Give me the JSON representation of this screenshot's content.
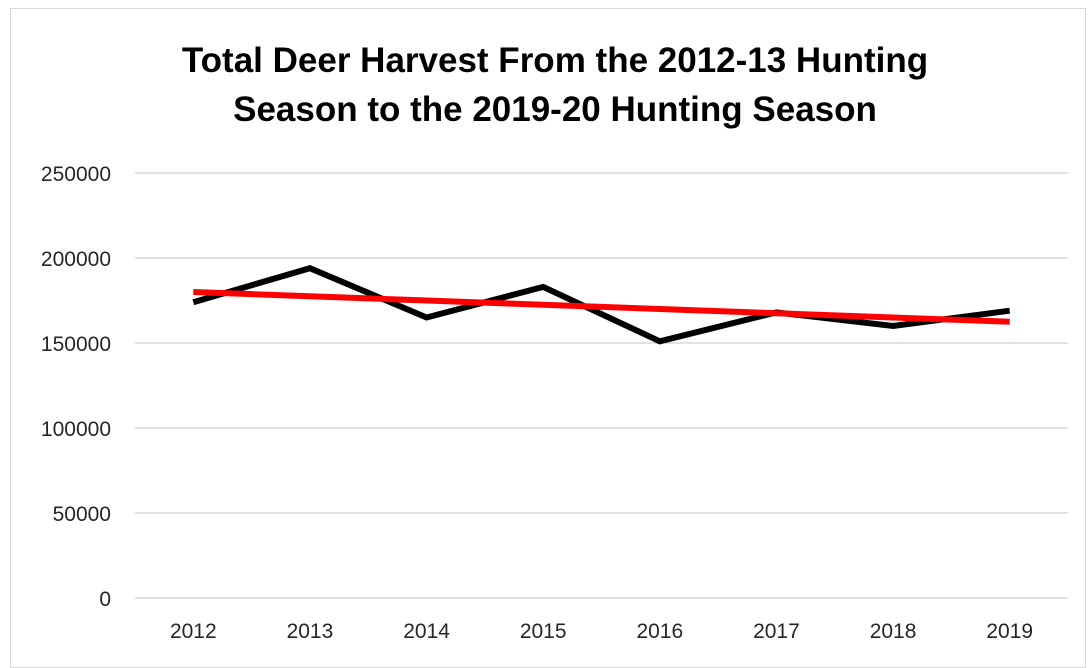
{
  "chart_data": {
    "type": "line",
    "title_lines": [
      "Total Deer Harvest From the 2012-13 Hunting",
      "Season to the 2019-20 Hunting Season"
    ],
    "xlabel": "",
    "ylabel": "",
    "categories": [
      "2012",
      "2013",
      "2014",
      "2015",
      "2016",
      "2017",
      "2018",
      "2019"
    ],
    "ylim": [
      0,
      250000
    ],
    "yticks": [
      0,
      50000,
      100000,
      150000,
      200000,
      250000
    ],
    "ytick_labels": [
      "0",
      "50000",
      "100000",
      "150000",
      "200000",
      "250000"
    ],
    "grid": "horizontal",
    "legend": "none",
    "series": [
      {
        "values": [
          174000,
          194000,
          165000,
          183000,
          151000,
          168000,
          160000,
          169000
        ],
        "color": "#000000",
        "style": "data line"
      },
      {
        "values": [
          180000,
          177500,
          175000,
          172500,
          170000,
          167500,
          165000,
          162500
        ],
        "color": "#ff0000",
        "style": "linear trendline"
      }
    ]
  }
}
